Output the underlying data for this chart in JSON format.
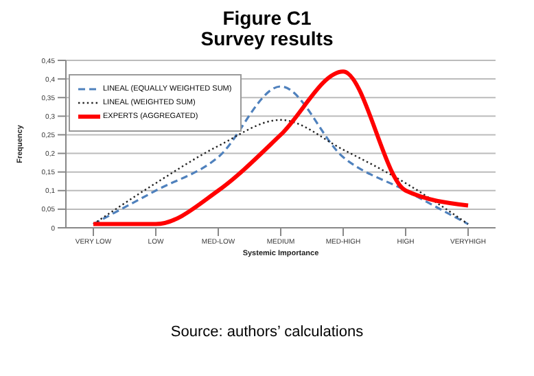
{
  "chart_data": {
    "type": "line",
    "title": "Figure C1",
    "subtitle": "Survey results",
    "xlabel": "Systemic Importance",
    "ylabel": "Frequency",
    "categories": [
      "VERY LOW",
      "LOW",
      "MED-LOW",
      "MEDIUM",
      "MED-HIGH",
      "HIGH",
      "VERYHIGH"
    ],
    "series": [
      {
        "name": "LINEAL (EQUALLY WEIGHTED SUM)",
        "color": "#4f81bd",
        "line_style": "dashed",
        "values": [
          0.01,
          0.1,
          0.19,
          0.38,
          0.19,
          0.1,
          0.01
        ]
      },
      {
        "name": "LINEAL (WEIGHTED SUM)",
        "color": "#222222",
        "line_style": "dotted",
        "values": [
          0.01,
          0.12,
          0.22,
          0.29,
          0.21,
          0.12,
          0.01
        ]
      },
      {
        "name": "EXPERTS (AGGREGATED)",
        "color": "#ff0000",
        "line_style": "solid",
        "values": [
          0.01,
          0.01,
          0.1,
          0.25,
          0.42,
          0.1,
          0.06
        ]
      }
    ],
    "ylim": [
      0,
      0.45
    ],
    "yticks": [
      {
        "value": 0,
        "label": "0"
      },
      {
        "value": 0.05,
        "label": "0,05"
      },
      {
        "value": 0.1,
        "label": "0,1"
      },
      {
        "value": 0.15,
        "label": "0,15"
      },
      {
        "value": 0.2,
        "label": "0,2"
      },
      {
        "value": 0.25,
        "label": "0,25"
      },
      {
        "value": 0.3,
        "label": "0,3"
      },
      {
        "value": 0.35,
        "label": "0,35"
      },
      {
        "value": 0.4,
        "label": "0,4"
      },
      {
        "value": 0.45,
        "label": "0,45"
      }
    ],
    "grid": "y",
    "legend": "top left",
    "marker": "none",
    "annotations": [
      "Source: authors’ calculations"
    ]
  }
}
